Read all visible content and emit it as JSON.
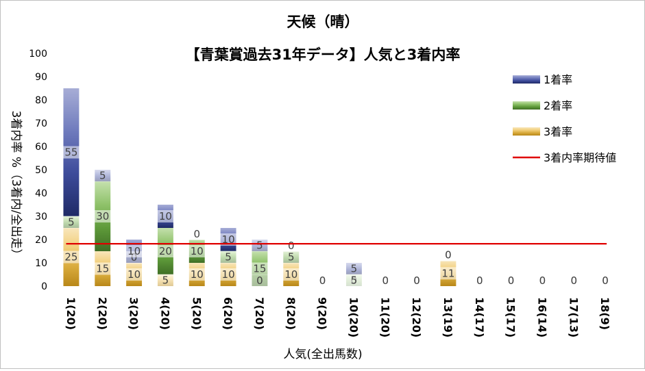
{
  "chart_data": {
    "type": "bar",
    "stacked": true,
    "title": "天候（晴）",
    "subtitle": "【青葉賞過去31年データ】人気と3着内率",
    "xlabel": "人気(全出馬数)",
    "ylabel": "3着内率 %（3着内/全出走）",
    "ylim": [
      0,
      100
    ],
    "yticks": [
      "0",
      "10",
      "20",
      "30",
      "40",
      "50",
      "60",
      "70",
      "80",
      "90",
      "100"
    ],
    "grid": false,
    "legend_position": "right",
    "categories": [
      "1(20)",
      "2(20)",
      "3(20)",
      "4(20)",
      "5(20)",
      "6(20)",
      "7(20)",
      "8(20)",
      "9(20)",
      "10(20)",
      "11(20)",
      "12(20)",
      "13(19)",
      "14(17)",
      "15(17)",
      "16(14)",
      "17(13)",
      "18(9)"
    ],
    "series": [
      {
        "name": "3着率",
        "values": [
          25,
          15,
          10,
          5,
          10,
          10,
          0,
          10,
          0,
          0,
          0,
          0,
          11,
          0,
          0,
          0,
          0,
          0
        ],
        "labels": [
          "25",
          "15",
          "10",
          "5",
          "10",
          "10",
          "0",
          "10",
          "0",
          "0",
          "0",
          "0",
          "11",
          "0",
          "0",
          "0",
          "0",
          "0"
        ]
      },
      {
        "name": "2着率",
        "values": [
          5,
          30,
          0,
          20,
          10,
          5,
          15,
          5,
          0,
          5,
          0,
          0,
          0,
          0,
          0,
          0,
          0,
          0
        ],
        "labels": [
          "5",
          "30",
          "0",
          "20",
          "10",
          "5",
          "15",
          "5",
          "0",
          "5",
          "0",
          "0",
          "0",
          "0",
          "0",
          "0",
          "0",
          "0"
        ]
      },
      {
        "name": "1着率",
        "values": [
          55,
          5,
          10,
          10,
          0,
          10,
          5,
          0,
          0,
          5,
          0,
          0,
          0,
          0,
          0,
          0,
          0,
          0
        ],
        "labels": [
          "55",
          "5",
          "10",
          "10",
          "0",
          "10",
          "5",
          "0",
          "0",
          "5",
          "0",
          "0",
          "0",
          "0",
          "0",
          "0",
          "0",
          "0"
        ]
      }
    ],
    "reference_line": {
      "name": "3着内率期待値",
      "value": 18.2,
      "color": "#e00000"
    },
    "colors": {
      "1着率": [
        "#1f2a66",
        "#3d4b9a",
        "#6f7bbd",
        "#a7add6"
      ],
      "2着率": [
        "#3f6e25",
        "#5e9a3a",
        "#8fc26a",
        "#c4e0ad"
      ],
      "3着率": [
        "#b88718",
        "#d9ab3c",
        "#f2cf7c",
        "#f8e6bb"
      ]
    }
  }
}
